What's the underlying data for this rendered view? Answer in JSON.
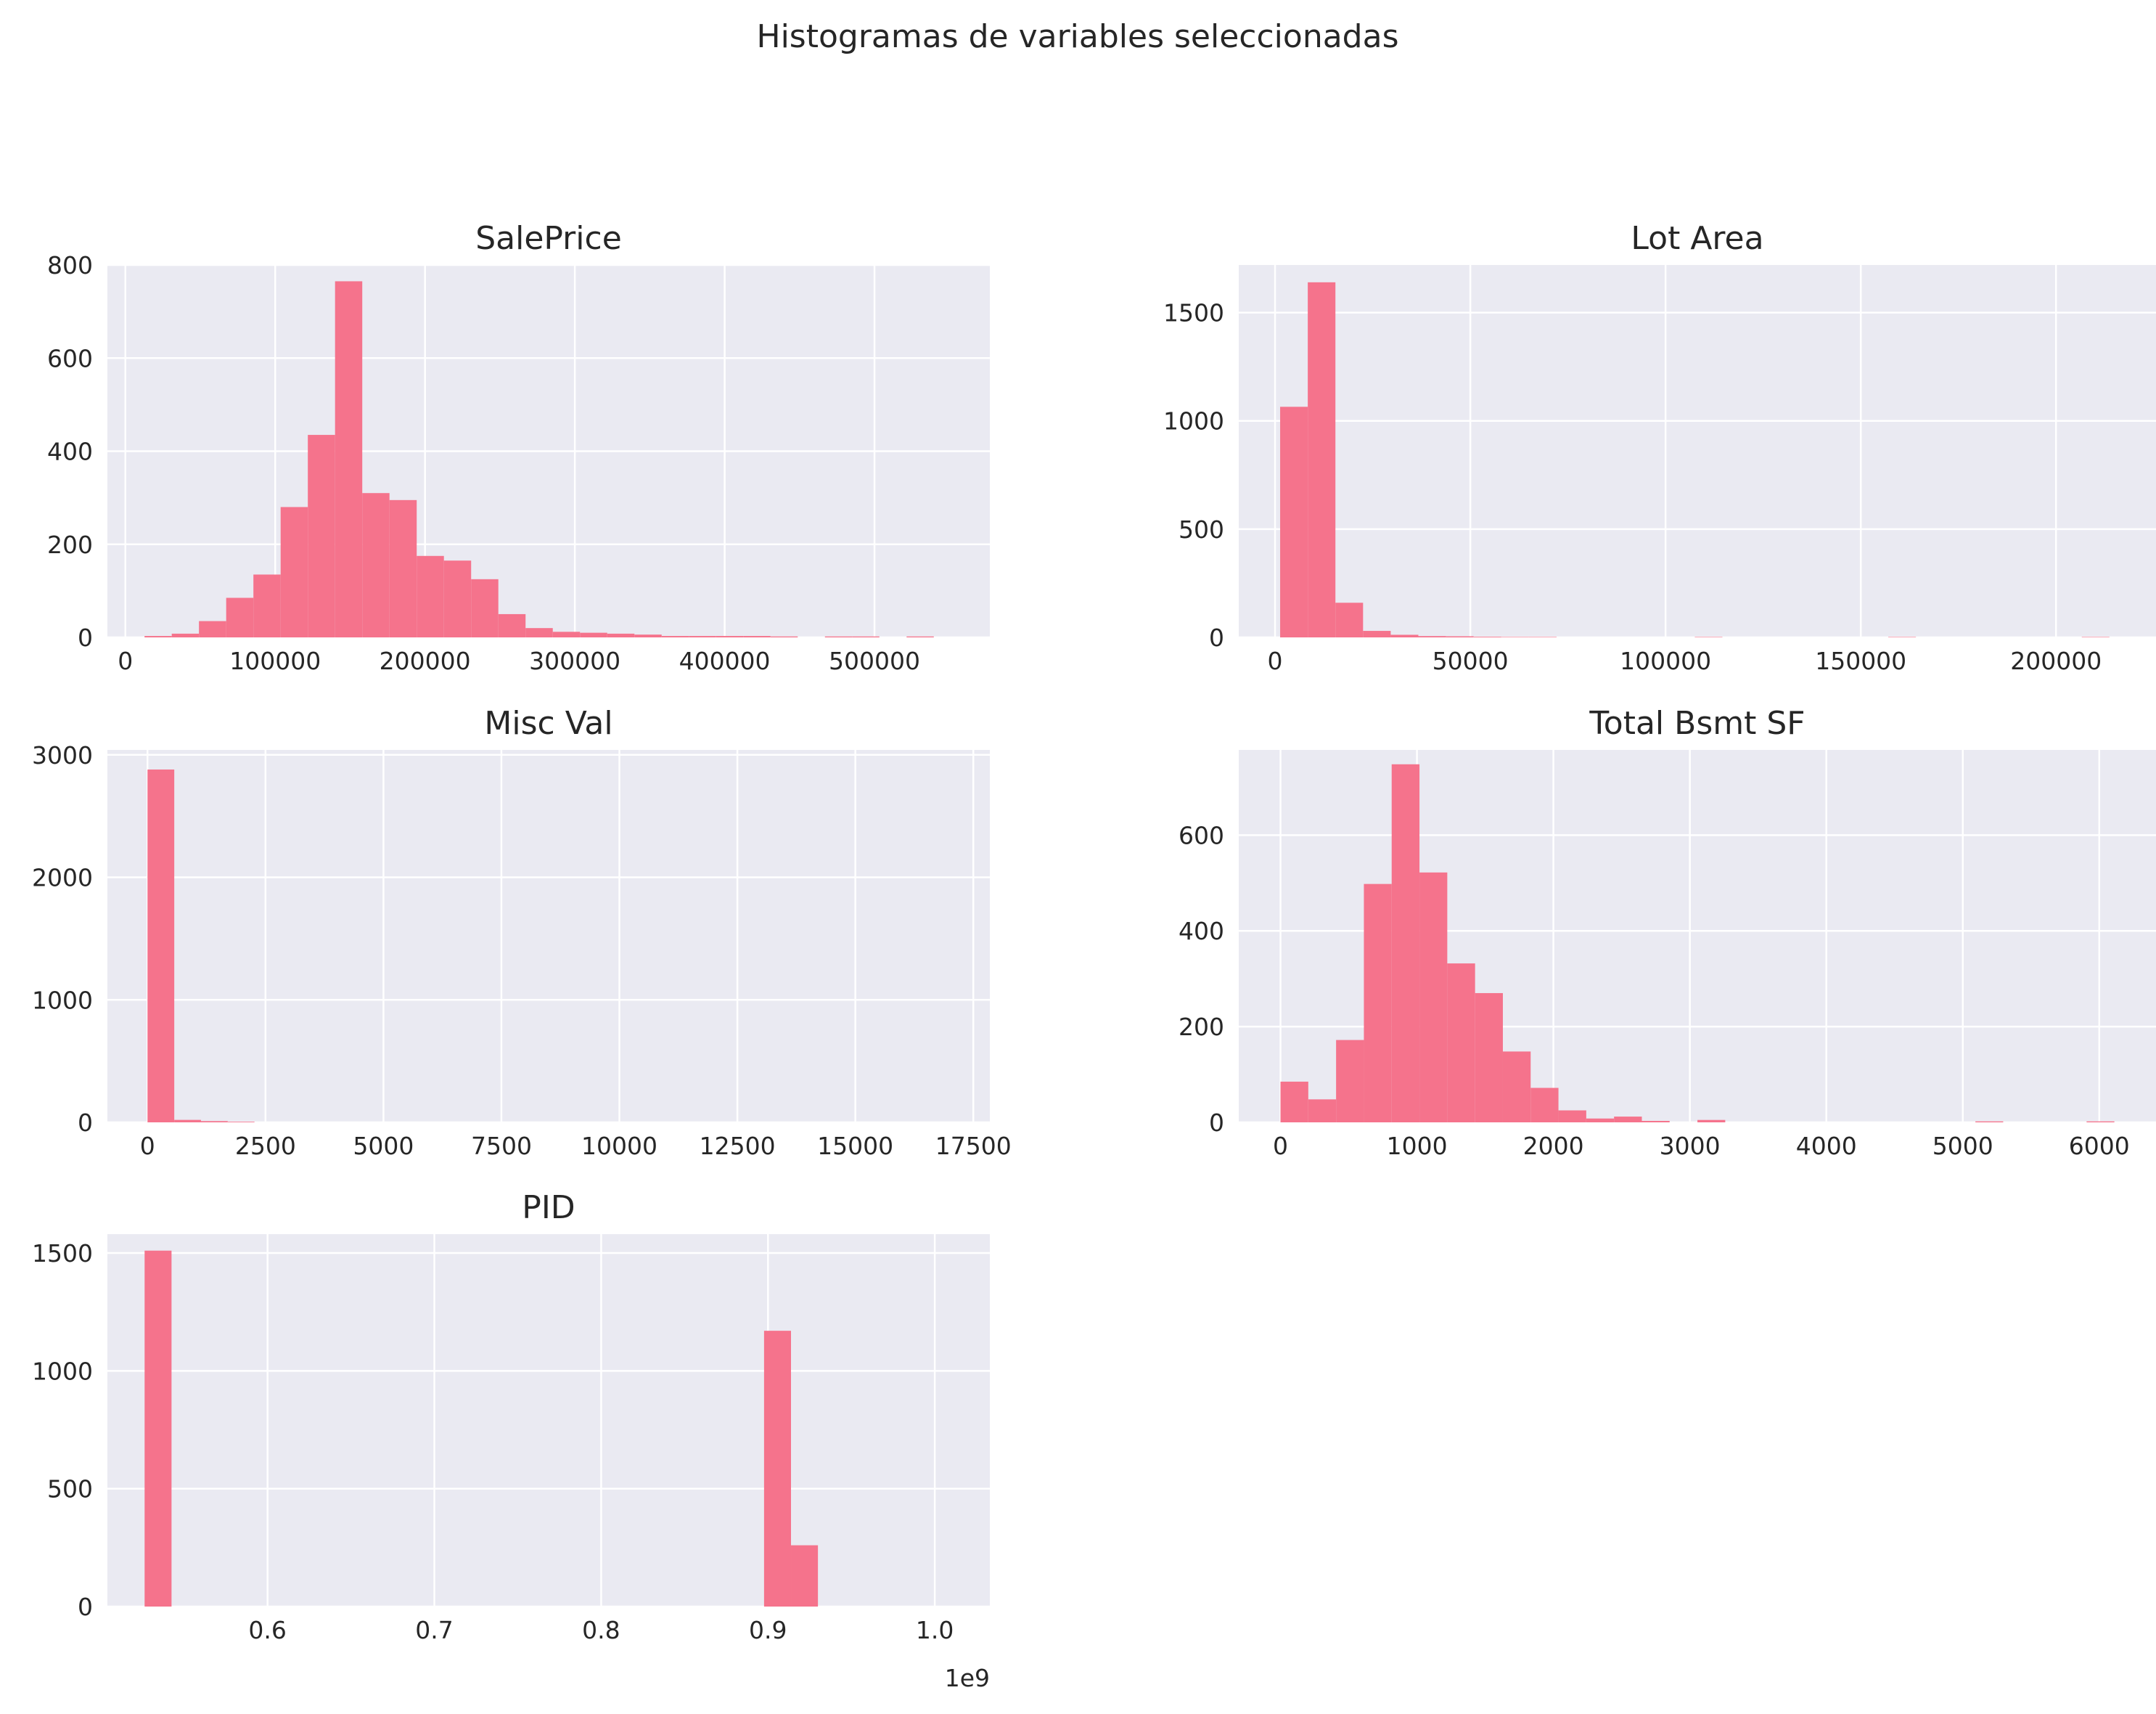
{
  "figure": {
    "suptitle": "Histogramas de variables seleccionadas",
    "bar_color": "#f5738c",
    "axes_bg": "#eaeaf2"
  },
  "chart_data": [
    {
      "type": "bar",
      "title": "SalePrice",
      "xlim": [
        -12000,
        577000
      ],
      "ylim": [
        0,
        800
      ],
      "xticks": [
        0,
        100000,
        200000,
        300000,
        400000,
        500000
      ],
      "xtick_labels": [
        "0",
        "100000",
        "200000",
        "300000",
        "400000",
        "500000"
      ],
      "yticks": [
        0,
        200,
        400,
        600,
        800
      ],
      "ytick_labels": [
        "0",
        "200",
        "400",
        "600",
        "800"
      ],
      "bin_edges": [
        12789,
        30955,
        49121,
        67287,
        85453,
        103619,
        121785,
        139951,
        158117,
        176283,
        194449,
        212615,
        230781,
        248947,
        267113,
        285279,
        303445,
        321611,
        339777,
        357943,
        376109,
        394275,
        412441,
        430607,
        448773,
        466939,
        485105,
        503271,
        521437,
        539603,
        557769
      ],
      "counts": [
        3,
        8,
        35,
        85,
        135,
        280,
        435,
        765,
        310,
        295,
        175,
        165,
        125,
        50,
        20,
        12,
        10,
        8,
        6,
        3,
        3,
        3,
        3,
        2,
        0,
        2,
        2,
        0,
        2,
        0
      ]
    },
    {
      "type": "bar",
      "title": "Lot Area",
      "xlim": [
        -9300,
        225600
      ],
      "ylim": [
        0,
        1720
      ],
      "xticks": [
        0,
        50000,
        100000,
        150000,
        200000
      ],
      "xtick_labels": [
        "0",
        "50000",
        "100000",
        "150000",
        "200000"
      ],
      "yticks": [
        0,
        500,
        1000,
        1500
      ],
      "ytick_labels": [
        "0",
        "500",
        "1000",
        "1500"
      ],
      "bin_edges": [
        1300,
        8379,
        15458,
        22537,
        29616,
        36695,
        43774,
        50853,
        57932,
        65011,
        72090,
        79169,
        86248,
        93327,
        100406,
        107485,
        114564,
        121643,
        128722,
        135801,
        142880,
        149959,
        157038,
        164117,
        171196,
        178275,
        185354,
        192433,
        199512,
        206591,
        213670
      ],
      "counts": [
        1065,
        1640,
        160,
        30,
        12,
        6,
        5,
        3,
        2,
        2,
        0,
        0,
        0,
        0,
        0,
        2,
        0,
        0,
        0,
        0,
        0,
        0,
        2,
        0,
        0,
        0,
        0,
        0,
        0,
        2
      ]
    },
    {
      "type": "bar",
      "title": "Misc Val",
      "xlim": [
        -850,
        17850
      ],
      "ylim": [
        0,
        3040
      ],
      "xticks": [
        0,
        2500,
        5000,
        7500,
        10000,
        12500,
        15000,
        17500
      ],
      "xtick_labels": [
        "0",
        "2500",
        "5000",
        "7500",
        "10000",
        "12500",
        "15000",
        "17500"
      ],
      "yticks": [
        0,
        1000,
        2000,
        3000
      ],
      "ytick_labels": [
        "0",
        "1000",
        "2000",
        "3000"
      ],
      "bin_edges": [
        0,
        567,
        1133,
        1700,
        2267,
        2833,
        3400,
        3967,
        4533,
        5100,
        5667,
        6233,
        6800,
        7367,
        7933,
        8500,
        9067,
        9633,
        10200,
        10767,
        11333,
        11900,
        12467,
        13033,
        13600,
        14167,
        14733,
        15300,
        15867,
        16433,
        17000
      ],
      "counts": [
        2880,
        20,
        10,
        5,
        0,
        0,
        0,
        0,
        0,
        0,
        0,
        0,
        0,
        0,
        0,
        0,
        0,
        0,
        0,
        0,
        0,
        0,
        0,
        0,
        0,
        0,
        0,
        0,
        0,
        0
      ]
    },
    {
      "type": "bar",
      "title": "Total Bsmt SF",
      "xlim": [
        -306,
        6416
      ],
      "ylim": [
        0,
        778
      ],
      "xticks": [
        0,
        1000,
        2000,
        3000,
        4000,
        5000,
        6000
      ],
      "xtick_labels": [
        "0",
        "1000",
        "2000",
        "3000",
        "4000",
        "5000",
        "6000"
      ],
      "yticks": [
        0,
        200,
        400,
        600
      ],
      "ytick_labels": [
        "0",
        "200",
        "400",
        "600"
      ],
      "bin_edges": [
        0,
        203.7,
        407.4,
        611.1,
        814.8,
        1018.5,
        1222.2,
        1425.9,
        1629.6,
        1833.3,
        2037,
        2240.7,
        2444.4,
        2648.1,
        2851.8,
        3055.5,
        3259.2,
        3462.9,
        3666.6,
        3870.3,
        4074,
        4277.7,
        4481.4,
        4685.1,
        4888.8,
        5092.5,
        5296.2,
        5499.9,
        5703.6,
        5907.3,
        6111
      ],
      "counts": [
        85,
        48,
        172,
        498,
        748,
        522,
        332,
        270,
        148,
        72,
        25,
        8,
        12,
        3,
        0,
        5,
        0,
        0,
        0,
        0,
        0,
        0,
        0,
        0,
        0,
        2,
        0,
        0,
        0,
        2
      ]
    },
    {
      "type": "bar",
      "title": "PID",
      "xlim": [
        504000000,
        1033000000
      ],
      "ylim": [
        0,
        1580
      ],
      "xticks": [
        600000000,
        700000000,
        800000000,
        900000000,
        1000000000
      ],
      "xtick_labels": [
        "0.6",
        "0.7",
        "0.8",
        "0.9",
        "1.0"
      ],
      "x_offset_label": "1e9",
      "yticks": [
        0,
        500,
        1000,
        1500
      ],
      "ytick_labels": [
        "0",
        "500",
        "1000",
        "1500"
      ],
      "bin_edges": [
        526301100,
        542447000,
        558593000,
        574739000,
        590885000,
        607031000,
        623177000,
        639323000,
        655469000,
        671615000,
        687761000,
        703907000,
        720053000,
        736199000,
        752345000,
        768491000,
        784637000,
        800783000,
        816929000,
        833075000,
        849221000,
        865367000,
        881513000,
        897659000,
        913805000,
        929951000,
        946097000,
        962243000,
        978389000,
        994535000,
        1007100000
      ],
      "counts": [
        1510,
        0,
        0,
        0,
        0,
        0,
        0,
        0,
        0,
        0,
        0,
        0,
        0,
        0,
        0,
        0,
        0,
        0,
        0,
        0,
        0,
        0,
        0,
        1170,
        260,
        0,
        0,
        0,
        0,
        0
      ]
    }
  ]
}
